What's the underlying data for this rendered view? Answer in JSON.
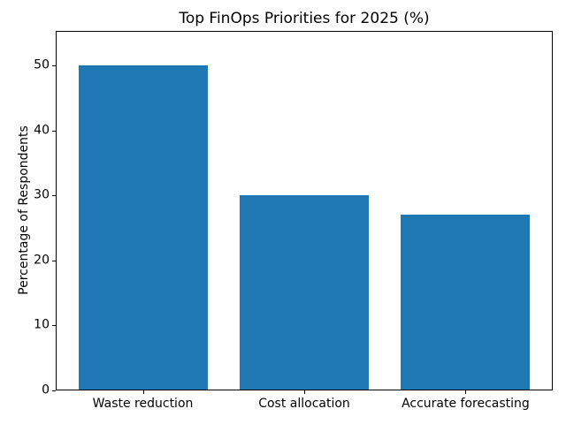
{
  "chart_data": {
    "type": "bar",
    "title": "Top FinOps Priorities for 2025 (%)",
    "categories": [
      "Waste reduction",
      "Cost allocation",
      "Accurate forecasting"
    ],
    "values": [
      50,
      30,
      27
    ],
    "xlabel": "",
    "ylabel": "Percentage of Respondents",
    "ylim": [
      0,
      55.3
    ],
    "yticks": [
      0,
      10,
      20,
      30,
      40,
      50
    ],
    "bar_color": "#1f77b4",
    "spine_color": "#000000",
    "background_color": "#ffffff",
    "bar_width_fraction": 0.8,
    "grid": false,
    "legend": "none"
  }
}
